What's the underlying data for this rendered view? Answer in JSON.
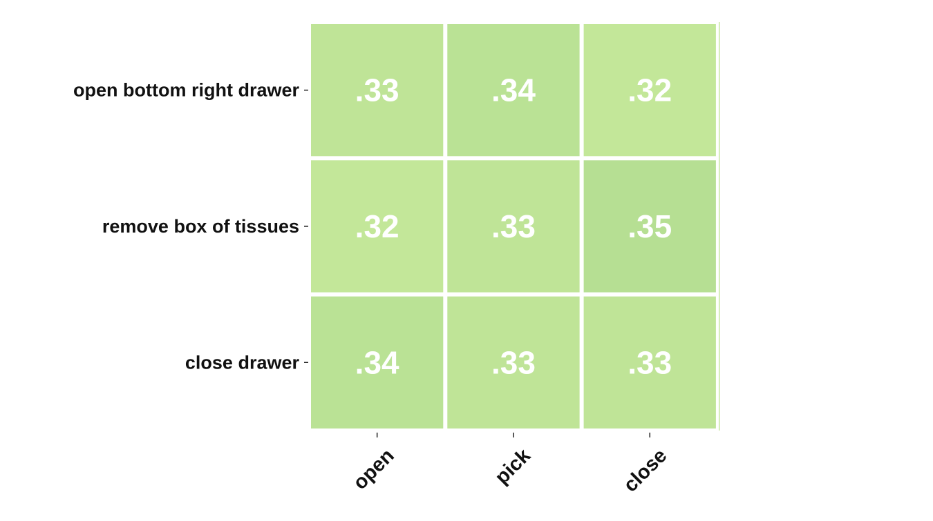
{
  "chart_data": {
    "type": "heatmap",
    "title": "",
    "xlabel": "",
    "ylabel": "",
    "x_categories": [
      "open",
      "pick",
      "close"
    ],
    "y_categories": [
      "open bottom right drawer",
      "remove box of tissues",
      "close drawer"
    ],
    "values": [
      [
        0.33,
        0.34,
        0.32
      ],
      [
        0.32,
        0.33,
        0.35
      ],
      [
        0.34,
        0.33,
        0.33
      ]
    ],
    "value_labels": [
      [
        ".33",
        ".34",
        ".32"
      ],
      [
        ".32",
        ".33",
        ".35"
      ],
      [
        ".34",
        ".33",
        ".33"
      ]
    ],
    "colors": {
      "low": "#c3e799",
      "high": "#b6df93",
      "value_text": "#ffffff",
      "grid": "#ffffff"
    },
    "color_range": [
      0.32,
      0.35
    ]
  }
}
